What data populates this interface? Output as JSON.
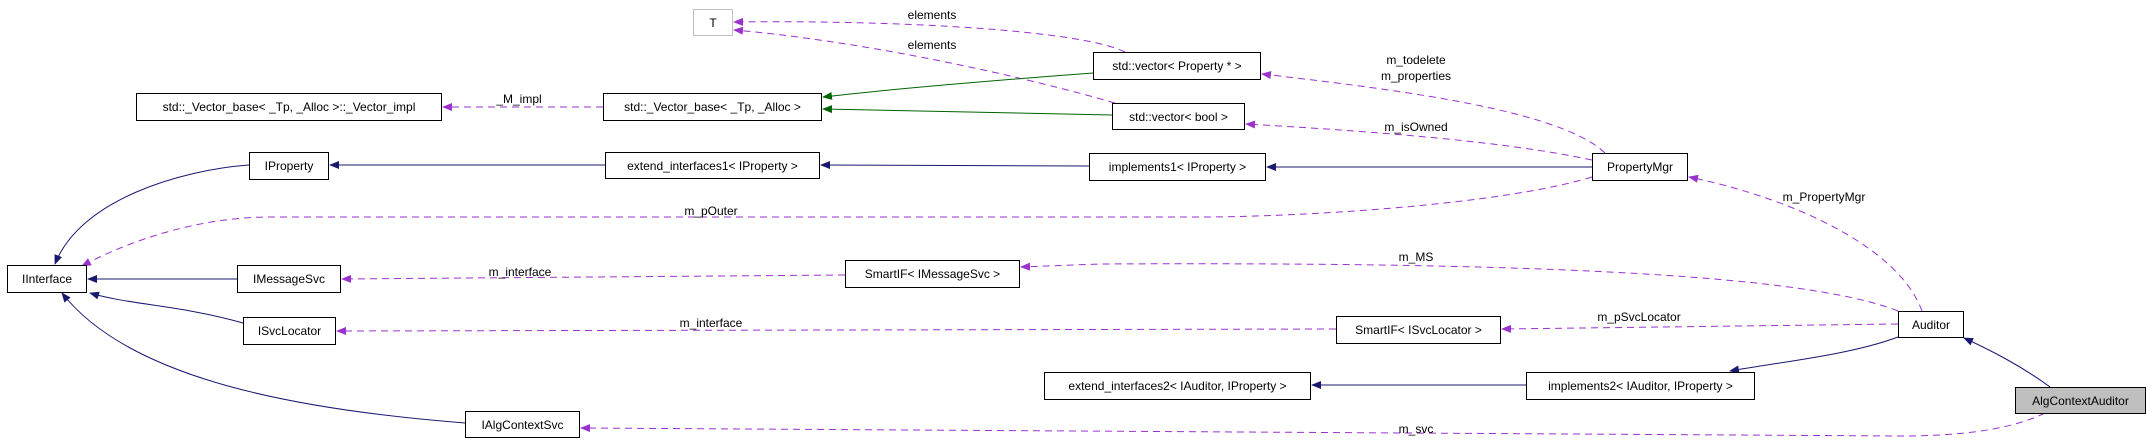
{
  "colors": {
    "inheritance": "#191970",
    "template": "#006400",
    "usage": "#9a32cd",
    "current_node_fill": "#bfbfbf"
  },
  "nodes": {
    "T": "T",
    "vector_impl": "std::_Vector_base< _Tp, _Alloc >::_Vector_impl",
    "vector_base": "std::_Vector_base< _Tp, _Alloc >",
    "vector_property": "std::vector< Property * >",
    "vector_bool": "std::vector< bool >",
    "iproperty": "IProperty",
    "extend_interfaces1": "extend_interfaces1< IProperty >",
    "implements1": "implements1< IProperty >",
    "propertymgr": "PropertyMgr",
    "iinterface": "IInterface",
    "imessagesvc": "IMessageSvc",
    "smartif_msg": "SmartIF< IMessageSvc >",
    "isvclocator": "ISvcLocator",
    "smartif_svc": "SmartIF< ISvcLocator >",
    "auditor": "Auditor",
    "extend_interfaces2": "extend_interfaces2< IAuditor, IProperty >",
    "implements2": "implements2< IAuditor, IProperty >",
    "ialgcontextsvc": "IAlgContextSvc",
    "algcontextauditor": "AlgContextAuditor"
  },
  "edge_labels": {
    "elements1": "elements",
    "elements2": "elements",
    "m_impl": "_M_impl",
    "m_todelete": "m_todelete",
    "m_properties": "m_properties",
    "m_isowned": "m_isOwned",
    "m_pouter": "m_pOuter",
    "m_propertymgr": "m_PropertyMgr",
    "m_ms": "m_MS",
    "m_interface1": "m_interface",
    "m_interface2": "m_interface",
    "m_psvclocator": "m_pSvcLocator",
    "m_svc": "m_svc"
  }
}
